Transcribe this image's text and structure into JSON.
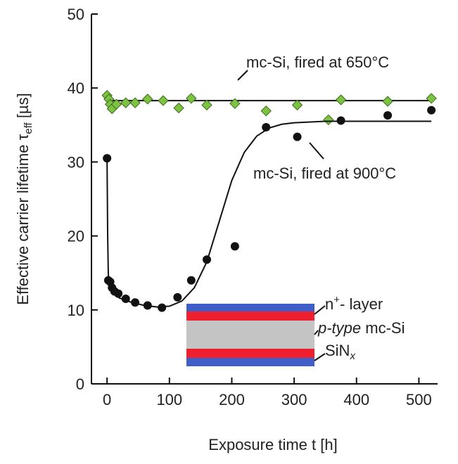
{
  "chart_data": {
    "type": "scatter",
    "x_label": "Exposure time t [h]",
    "y_label": {
      "text": "Effective carrier lifetime τ",
      "sub": "eff",
      "suffix": " [µs]"
    },
    "xlim": [
      -25,
      530
    ],
    "xticks": [
      0,
      100,
      200,
      300,
      400,
      500
    ],
    "ylim": [
      0,
      50
    ],
    "yticks": [
      0,
      10,
      20,
      30,
      40,
      50
    ],
    "series": [
      {
        "name": "mc-Si, fired at 650°C",
        "color": "#7dc242",
        "marker": "diamond",
        "x": [
          0,
          3,
          5,
          8,
          15,
          30,
          45,
          65,
          90,
          115,
          135,
          160,
          205,
          255,
          305,
          355,
          375,
          450,
          520
        ],
        "values": [
          39,
          38.5,
          37.8,
          37.2,
          37.8,
          38,
          38,
          38.5,
          38.3,
          37.3,
          38.6,
          37.7,
          37.9,
          36.9,
          37.7,
          35.7,
          38.4,
          38.2,
          38.6
        ],
        "fit_x": [
          0,
          520
        ],
        "fit_values": [
          38.3,
          38.3
        ]
      },
      {
        "name": "mc-Si, fired at 900°C",
        "color": "#111111",
        "marker": "circle",
        "x": [
          0,
          2,
          5,
          8,
          12,
          18,
          30,
          45,
          65,
          88,
          113,
          135,
          160,
          205,
          255,
          305,
          375,
          450,
          520
        ],
        "values": [
          30.5,
          14,
          13.8,
          13,
          12.5,
          12.2,
          11.5,
          11,
          10.6,
          10.3,
          11.7,
          14,
          16.8,
          18.6,
          34.7,
          33.4,
          35.6,
          36.3,
          37
        ],
        "fit_x": [
          0,
          1,
          2,
          3,
          5,
          10,
          20,
          40,
          60,
          80,
          100,
          120,
          140,
          160,
          180,
          200,
          220,
          240,
          260,
          280,
          300,
          350,
          400,
          450,
          520
        ],
        "fit_values": [
          30.5,
          20,
          15,
          13.3,
          12.8,
          12.2,
          11.6,
          11,
          10.6,
          10.4,
          10.5,
          11.2,
          13,
          16.5,
          22,
          27.5,
          31.3,
          33.5,
          34.6,
          35.1,
          35.3,
          35.5,
          35.5,
          35.5,
          35.5
        ]
      }
    ],
    "inset": {
      "top": {
        "text": "n",
        "sup": "+",
        "suffix": "- layer"
      },
      "middle": {
        "italic": "p-type",
        "suffix": " mc-Si"
      },
      "bottom": {
        "text": "SiN",
        "sub": "x"
      }
    }
  }
}
